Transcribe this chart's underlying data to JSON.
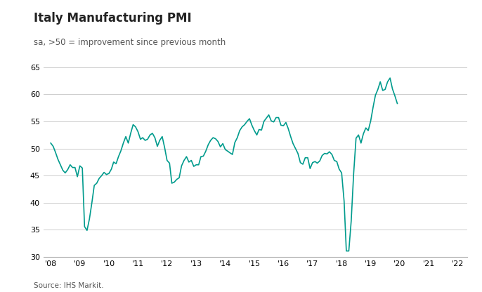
{
  "title": "Italy Manufacturing PMI",
  "subtitle": "sa, >50 = improvement since previous month",
  "source": "Source: IHS Markit.",
  "line_color": "#009B8D",
  "background_color": "#ffffff",
  "grid_color": "#cccccc",
  "ylim": [
    30,
    65
  ],
  "yticks": [
    30,
    35,
    40,
    45,
    50,
    55,
    60,
    65
  ],
  "x_labels": [
    "'08",
    "'09",
    "'10",
    "'11",
    "'12",
    "'13",
    "'14",
    "'15",
    "'16",
    "'17",
    "'18",
    "'19",
    "'20",
    "'21",
    "'22"
  ],
  "pmi_data": [
    51.0,
    50.4,
    49.3,
    48.0,
    47.0,
    46.0,
    45.5,
    46.1,
    47.0,
    46.5,
    46.5,
    44.8,
    46.8,
    46.4,
    35.6,
    34.9,
    37.0,
    40.0,
    43.2,
    43.6,
    44.5,
    45.0,
    45.6,
    45.2,
    45.4,
    46.2,
    47.5,
    47.2,
    48.5,
    49.6,
    51.0,
    52.2,
    51.0,
    52.8,
    54.4,
    54.0,
    53.1,
    51.7,
    52.0,
    51.5,
    51.7,
    52.5,
    52.8,
    52.0,
    50.4,
    51.5,
    52.2,
    50.2,
    47.8,
    47.3,
    43.6,
    43.8,
    44.3,
    44.6,
    46.8,
    47.8,
    48.5,
    47.5,
    47.8,
    46.7,
    47.0,
    47.0,
    48.5,
    48.6,
    49.5,
    50.7,
    51.5,
    52.0,
    51.8,
    51.3,
    50.3,
    50.9,
    49.8,
    49.5,
    49.2,
    48.9,
    51.1,
    52.0,
    53.3,
    54.0,
    54.4,
    55.0,
    55.5,
    54.3,
    53.3,
    52.5,
    53.5,
    53.4,
    55.0,
    55.6,
    56.2,
    55.1,
    54.9,
    55.7,
    55.7,
    54.3,
    54.2,
    54.8,
    53.7,
    52.2,
    50.9,
    50.0,
    49.1,
    47.4,
    47.1,
    48.3,
    48.3,
    46.3,
    47.4,
    47.6,
    47.3,
    47.7,
    48.7,
    49.1,
    49.0,
    49.4,
    48.9,
    47.8,
    47.6,
    46.2,
    45.5,
    40.3,
    31.1,
    31.1,
    36.6,
    45.4,
    51.9,
    52.5,
    51.0,
    52.7,
    53.8,
    53.3,
    55.1,
    57.7,
    59.8,
    60.9,
    62.3,
    60.7,
    60.9,
    62.3,
    63.0,
    61.0,
    59.7,
    58.3
  ]
}
